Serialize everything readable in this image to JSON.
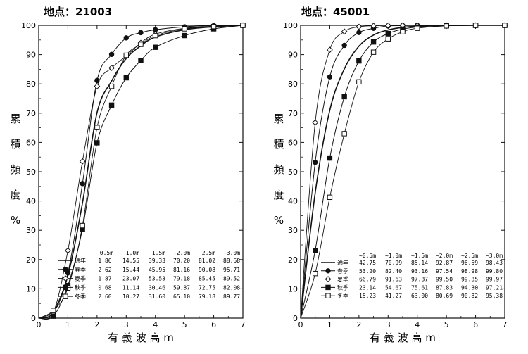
{
  "chart_data": [
    {
      "type": "line",
      "title": "地点：21003",
      "xlabel": "有 義 波 高 m",
      "ylabel_chars": [
        "累",
        "積",
        "頻",
        "度",
        "%"
      ],
      "xlim": [
        0,
        7
      ],
      "ylim": [
        0,
        100
      ],
      "x_ticks": [
        0,
        1,
        2,
        3,
        4,
        5,
        6,
        7
      ],
      "y_ticks": [
        0,
        10,
        20,
        30,
        40,
        50,
        60,
        70,
        80,
        90,
        100
      ],
      "table_headers": [
        "~0.5m",
        "~1.0m",
        "~1.5m",
        "~2.0m",
        "~2.5m",
        "~3.0m"
      ],
      "series": [
        {
          "name": "通年",
          "marker": "none",
          "x": [
            0,
            0.5,
            1.0,
            1.5,
            2.0,
            2.5,
            3.0,
            3.5,
            4.0,
            5.0,
            6.0,
            7.0
          ],
          "values": [
            0,
            1.86,
            14.55,
            39.33,
            70.2,
            81.02,
            88.68,
            93.0,
            96.0,
            98.5,
            99.5,
            100
          ],
          "table_values": [
            "1.86",
            "14.55",
            "39.33",
            "70.20",
            "81.02",
            "88.68"
          ]
        },
        {
          "name": "春季",
          "marker": "filled-circle",
          "x": [
            0,
            0.5,
            1.0,
            1.5,
            2.0,
            2.5,
            3.0,
            3.5,
            4.0,
            5.0,
            6.0,
            7.0
          ],
          "values": [
            0,
            2.62,
            15.44,
            45.95,
            81.16,
            90.08,
            95.71,
            97.5,
            98.5,
            99.5,
            99.9,
            100
          ],
          "table_values": [
            "2.62",
            "15.44",
            "45.95",
            "81.16",
            "90.08",
            "95.71"
          ]
        },
        {
          "name": "夏季",
          "marker": "open-diamond",
          "x": [
            0,
            0.5,
            1.0,
            1.5,
            2.0,
            2.5,
            3.0,
            3.5,
            4.0,
            5.0,
            6.0,
            7.0
          ],
          "values": [
            0,
            1.87,
            23.07,
            53.53,
            79.18,
            85.45,
            89.52,
            94.0,
            97.0,
            99.0,
            99.7,
            100
          ],
          "table_values": [
            "1.87",
            "23.07",
            "53.53",
            "79.18",
            "85.45",
            "89.52"
          ]
        },
        {
          "name": "秋季",
          "marker": "filled-square",
          "x": [
            0,
            0.5,
            1.0,
            1.5,
            2.0,
            2.5,
            3.0,
            3.5,
            4.0,
            5.0,
            6.0,
            7.0
          ],
          "values": [
            0,
            0.68,
            11.14,
            30.46,
            59.87,
            72.75,
            82.08,
            88.0,
            92.5,
            96.5,
            98.8,
            100
          ],
          "table_values": [
            "0.68",
            "11.14",
            "30.46",
            "59.87",
            "72.75",
            "82.08"
          ]
        },
        {
          "name": "冬季",
          "marker": "open-square",
          "x": [
            0,
            0.5,
            1.0,
            1.5,
            2.0,
            2.5,
            3.0,
            3.5,
            4.0,
            5.0,
            6.0,
            7.0
          ],
          "values": [
            0,
            2.6,
            10.27,
            31.6,
            65.1,
            79.18,
            89.77,
            93.5,
            96.5,
            98.8,
            99.6,
            100
          ],
          "table_values": [
            "2.60",
            "10.27",
            "31.60",
            "65.10",
            "79.18",
            "89.77"
          ]
        }
      ]
    },
    {
      "type": "line",
      "title": "地点：45001",
      "xlabel": "有 義 波 高 m",
      "ylabel_chars": [
        "累",
        "積",
        "頻",
        "度",
        "%"
      ],
      "xlim": [
        0,
        7
      ],
      "ylim": [
        0,
        100
      ],
      "x_ticks": [
        0,
        1,
        2,
        3,
        4,
        5,
        6,
        7
      ],
      "y_ticks": [
        0,
        10,
        20,
        30,
        40,
        50,
        60,
        70,
        80,
        90,
        100
      ],
      "table_headers": [
        "~0.5m",
        "~1.0m",
        "~1.5m",
        "~2.0m",
        "~2.5m",
        "~3.0m"
      ],
      "series": [
        {
          "name": "通年",
          "marker": "none",
          "x": [
            0,
            0.5,
            1.0,
            1.5,
            2.0,
            2.5,
            3.0,
            3.5,
            4.0,
            5.0,
            6.0,
            7.0
          ],
          "values": [
            0,
            42.75,
            70.99,
            85.14,
            92.87,
            96.69,
            98.43,
            99.3,
            99.7,
            99.95,
            100,
            100
          ],
          "table_values": [
            "42.75",
            "70.99",
            "85.14",
            "92.87",
            "96.69",
            "98.43"
          ]
        },
        {
          "name": "春季",
          "marker": "filled-circle",
          "x": [
            0,
            0.5,
            1.0,
            1.5,
            2.0,
            2.5,
            3.0,
            3.5,
            4.0,
            5.0,
            6.0,
            7.0
          ],
          "values": [
            0,
            53.2,
            82.4,
            93.16,
            97.54,
            98.98,
            99.8,
            99.9,
            100,
            100,
            100,
            100
          ],
          "table_values": [
            "53.20",
            "82.40",
            "93.16",
            "97.54",
            "98.98",
            "99.80"
          ]
        },
        {
          "name": "夏季",
          "marker": "open-diamond",
          "x": [
            0,
            0.5,
            1.0,
            1.5,
            2.0,
            2.5,
            3.0,
            3.5,
            4.0,
            5.0,
            6.0,
            7.0
          ],
          "values": [
            0,
            66.79,
            91.63,
            97.87,
            99.5,
            99.85,
            99.97,
            100,
            100,
            100,
            100,
            100
          ],
          "table_values": [
            "66.79",
            "91.63",
            "97.87",
            "99.50",
            "99.85",
            "99.97"
          ]
        },
        {
          "name": "秋季",
          "marker": "filled-square",
          "x": [
            0,
            0.5,
            1.0,
            1.5,
            2.0,
            2.5,
            3.0,
            3.5,
            4.0,
            5.0,
            6.0,
            7.0
          ],
          "values": [
            0,
            23.14,
            54.67,
            75.61,
            87.83,
            94.3,
            97.21,
            98.7,
            99.4,
            99.9,
            100,
            100
          ],
          "table_values": [
            "23.14",
            "54.67",
            "75.61",
            "87.83",
            "94.30",
            "97.21"
          ]
        },
        {
          "name": "冬季",
          "marker": "open-square",
          "x": [
            0,
            0.5,
            1.0,
            1.5,
            2.0,
            2.5,
            3.0,
            3.5,
            4.0,
            5.0,
            6.0,
            7.0
          ],
          "values": [
            0,
            15.23,
            41.27,
            63.0,
            80.69,
            90.82,
            95.38,
            97.8,
            99.0,
            99.8,
            100,
            100
          ],
          "table_values": [
            "15.23",
            "41.27",
            "63.00",
            "80.69",
            "90.82",
            "95.38"
          ]
        }
      ]
    }
  ]
}
